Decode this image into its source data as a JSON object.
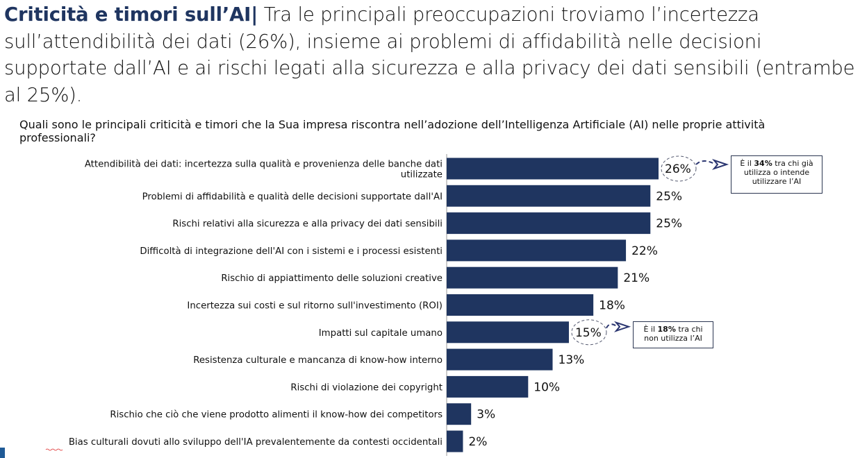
{
  "headline": {
    "bold": "Criticità e timori sull’AI|",
    "text": " Tra le principali preoccupazioni troviamo l’incertezza sull’attendibilità dei dati (26%), insieme ai problemi di affidabilità nelle decisioni supportate dall’AI e ai rischi legati alla sicurezza e alla privacy dei dati sensibili (entrambe al 25%)."
  },
  "question": "Quali sono le principali criticità e timori che la Sua impresa riscontra nell’adozione dell’Intelligenza Artificiale (AI) nelle proprie attività professionali?",
  "notes": [
    {
      "pre": "È il ",
      "bold": "34%",
      "post": " tra chi già utilizza o intende utilizzare l’AI"
    },
    {
      "pre": "È il ",
      "bold": "18%",
      "post": " tra chi non  utilizza l’AI"
    }
  ],
  "colors": {
    "bar": "#1f3560",
    "title": "#1f3560"
  },
  "chart_data": {
    "type": "bar",
    "orientation": "horizontal",
    "categories": [
      [
        "Attendibilità dei dati: incertezza sulla qualità e provenienza delle banche dati",
        "utilizzate"
      ],
      [
        "Problemi di affidabilità e qualità delle decisioni supportate dall'AI"
      ],
      [
        "Rischi relativi alla sicurezza e alla privacy dei dati sensibili"
      ],
      [
        "Difficoltà di integrazione dell'AI con i sistemi e i processi esistenti"
      ],
      [
        "Rischio di appiattimento delle soluzioni creative"
      ],
      [
        "Incertezza sui costi e sul ritorno sull'investimento (ROI)"
      ],
      [
        "Impatti sul capitale umano"
      ],
      [
        "Resistenza culturale e mancanza di know-how interno"
      ],
      [
        "Rischi di violazione dei copyright"
      ],
      [
        "Rischio che ciò che viene prodotto alimenti il know-how dei competitors"
      ],
      [
        "Bias culturali dovuti allo sviluppo dell'IA prevalentemente da contesti occidentali"
      ]
    ],
    "values": [
      26,
      25,
      25,
      22,
      21,
      18,
      15,
      13,
      10,
      3,
      2
    ],
    "labels": [
      "26%",
      "25%",
      "25%",
      "22%",
      "21%",
      "18%",
      "15%",
      "13%",
      "10%",
      "3%",
      "2%"
    ],
    "highlighted": [
      0,
      6
    ],
    "xlim": [
      0,
      26
    ],
    "unit": "%"
  }
}
